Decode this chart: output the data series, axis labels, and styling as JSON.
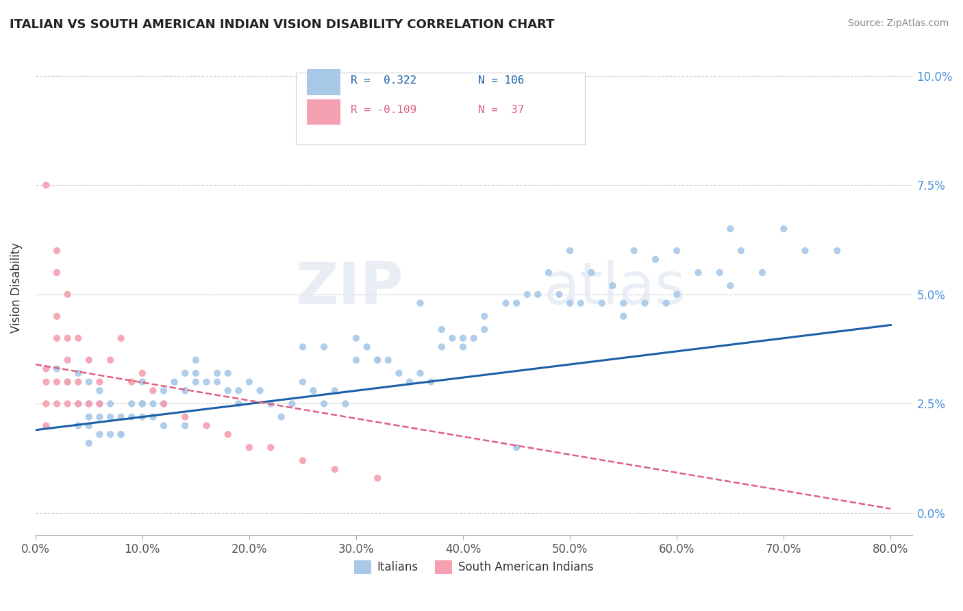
{
  "title": "ITALIAN VS SOUTH AMERICAN INDIAN VISION DISABILITY CORRELATION CHART",
  "source": "Source: ZipAtlas.com",
  "xlabel_ticks": [
    "0.0%",
    "10.0%",
    "20.0%",
    "30.0%",
    "40.0%",
    "50.0%",
    "60.0%",
    "70.0%",
    "80.0%"
  ],
  "ylabel_label": "Vision Disability",
  "ylabel_ticks": [
    "0.0%",
    "2.5%",
    "5.0%",
    "7.5%",
    "10.0%"
  ],
  "xlim": [
    0.0,
    0.82
  ],
  "ylim": [
    -0.005,
    0.108
  ],
  "legend_r1": "R =  0.322",
  "legend_n1": "N = 106",
  "legend_r2": "R = -0.109",
  "legend_n2": "N =  37",
  "italian_color": "#a8c8e8",
  "south_american_color": "#f4a0b0",
  "italian_line_color": "#1a5fa8",
  "south_american_line_color": "#e06080",
  "watermark_zip": "ZIP",
  "watermark_atlas": "atlas",
  "italian_scatter_x": [
    0.02,
    0.03,
    0.04,
    0.04,
    0.04,
    0.05,
    0.05,
    0.05,
    0.05,
    0.05,
    0.06,
    0.06,
    0.06,
    0.06,
    0.07,
    0.07,
    0.07,
    0.08,
    0.08,
    0.09,
    0.09,
    0.1,
    0.1,
    0.1,
    0.11,
    0.11,
    0.12,
    0.12,
    0.13,
    0.14,
    0.14,
    0.15,
    0.15,
    0.16,
    0.17,
    0.18,
    0.18,
    0.19,
    0.2,
    0.21,
    0.22,
    0.23,
    0.24,
    0.25,
    0.26,
    0.27,
    0.28,
    0.29,
    0.3,
    0.31,
    0.32,
    0.33,
    0.34,
    0.35,
    0.36,
    0.37,
    0.38,
    0.39,
    0.4,
    0.41,
    0.42,
    0.44,
    0.45,
    0.46,
    0.47,
    0.48,
    0.49,
    0.5,
    0.51,
    0.52,
    0.53,
    0.54,
    0.55,
    0.56,
    0.57,
    0.58,
    0.59,
    0.6,
    0.62,
    0.64,
    0.65,
    0.66,
    0.68,
    0.7,
    0.72,
    0.75,
    0.36,
    0.38,
    0.4,
    0.42,
    0.25,
    0.27,
    0.3,
    0.32,
    0.15,
    0.17,
    0.19,
    0.1,
    0.12,
    0.14,
    0.08,
    0.45,
    0.5,
    0.55,
    0.6,
    0.65
  ],
  "italian_scatter_y": [
    0.033,
    0.03,
    0.032,
    0.025,
    0.02,
    0.03,
    0.025,
    0.022,
    0.02,
    0.016,
    0.028,
    0.025,
    0.022,
    0.018,
    0.025,
    0.022,
    0.018,
    0.022,
    0.018,
    0.025,
    0.022,
    0.03,
    0.025,
    0.022,
    0.025,
    0.022,
    0.028,
    0.025,
    0.03,
    0.032,
    0.028,
    0.035,
    0.03,
    0.03,
    0.03,
    0.032,
    0.028,
    0.025,
    0.03,
    0.028,
    0.025,
    0.022,
    0.025,
    0.03,
    0.028,
    0.025,
    0.028,
    0.025,
    0.04,
    0.038,
    0.035,
    0.035,
    0.032,
    0.03,
    0.032,
    0.03,
    0.038,
    0.04,
    0.038,
    0.04,
    0.045,
    0.048,
    0.048,
    0.05,
    0.05,
    0.055,
    0.05,
    0.06,
    0.048,
    0.055,
    0.048,
    0.052,
    0.045,
    0.06,
    0.048,
    0.058,
    0.048,
    0.06,
    0.055,
    0.055,
    0.065,
    0.06,
    0.055,
    0.065,
    0.06,
    0.06,
    0.048,
    0.042,
    0.04,
    0.042,
    0.038,
    0.038,
    0.035,
    0.035,
    0.032,
    0.032,
    0.028,
    0.025,
    0.02,
    0.02,
    0.018,
    0.015,
    0.048,
    0.048,
    0.05,
    0.052
  ],
  "south_american_scatter_x": [
    0.01,
    0.01,
    0.01,
    0.01,
    0.01,
    0.02,
    0.02,
    0.02,
    0.02,
    0.02,
    0.02,
    0.03,
    0.03,
    0.03,
    0.03,
    0.03,
    0.04,
    0.04,
    0.04,
    0.05,
    0.05,
    0.06,
    0.06,
    0.07,
    0.08,
    0.09,
    0.1,
    0.11,
    0.12,
    0.14,
    0.16,
    0.18,
    0.2,
    0.22,
    0.25,
    0.28,
    0.32
  ],
  "south_american_scatter_y": [
    0.033,
    0.03,
    0.025,
    0.02,
    0.075,
    0.03,
    0.025,
    0.04,
    0.045,
    0.055,
    0.06,
    0.03,
    0.025,
    0.035,
    0.04,
    0.05,
    0.025,
    0.03,
    0.04,
    0.025,
    0.035,
    0.025,
    0.03,
    0.035,
    0.04,
    0.03,
    0.032,
    0.028,
    0.025,
    0.022,
    0.02,
    0.018,
    0.015,
    0.015,
    0.012,
    0.01,
    0.008
  ],
  "italian_trend_x": [
    0.0,
    0.8
  ],
  "italian_trend_y": [
    0.019,
    0.043
  ],
  "south_american_trend_x": [
    0.0,
    0.8
  ],
  "south_american_trend_y": [
    0.034,
    0.001
  ]
}
